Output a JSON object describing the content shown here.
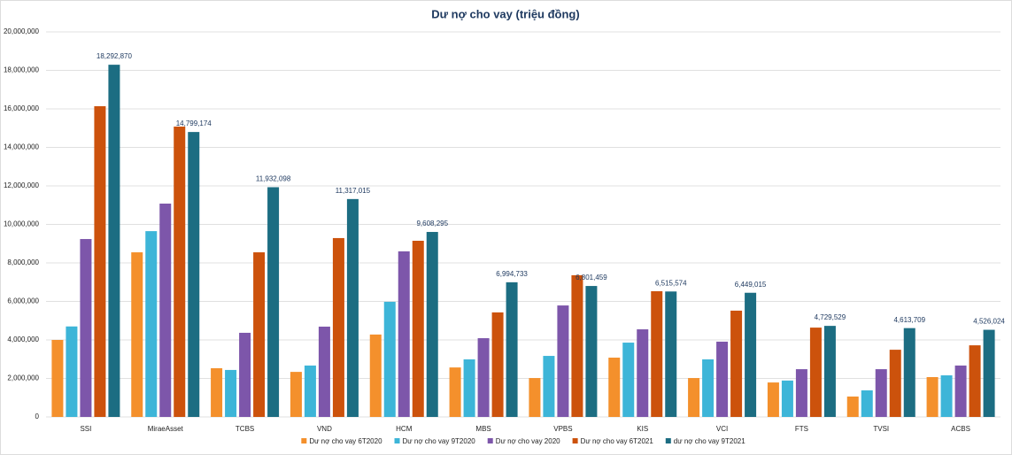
{
  "chart_data": {
    "type": "bar",
    "title": "Dư nợ cho vay (triệu đồng)",
    "categories": [
      "SSI",
      "MiraeAsset",
      "TCBS",
      "VND",
      "HCM",
      "MBS",
      "VPBS",
      "KIS",
      "VCI",
      "FTS",
      "TVSI",
      "ACBS"
    ],
    "series": [
      {
        "name": "Dư nợ cho vay 6T2020",
        "color": "#f4902c",
        "values": [
          4000000,
          8550000,
          2530000,
          2340000,
          4280000,
          2570000,
          2020000,
          3080000,
          2020000,
          1790000,
          1060000,
          2070000
        ]
      },
      {
        "name": "Dư nợ cho vay 9T2020",
        "color": "#3db5d8",
        "values": [
          4700000,
          9650000,
          2440000,
          2670000,
          5980000,
          2990000,
          3170000,
          3860000,
          2990000,
          1890000,
          1380000,
          2160000
        ]
      },
      {
        "name": "Dư nợ cho vay 2020",
        "color": "#7d56aa",
        "values": [
          9240000,
          11080000,
          4370000,
          4690000,
          8600000,
          4090000,
          5790000,
          4550000,
          3910000,
          2480000,
          2480000,
          2670000
        ]
      },
      {
        "name": "Dư nợ cho vay 6T2021",
        "color": "#cc520c",
        "values": [
          16140000,
          15080000,
          8550000,
          9290000,
          9150000,
          5430000,
          7360000,
          6530000,
          5520000,
          4640000,
          3490000,
          3720000
        ]
      },
      {
        "name": "dư nợ cho vay 9T2021",
        "color": "#1c6d82",
        "values": [
          18292870,
          14799174,
          11932098,
          11317015,
          9608295,
          6994733,
          6801459,
          6515574,
          6449015,
          4729529,
          4613709,
          4526024
        ],
        "value_labels": [
          "18,292,870",
          "14,799,174",
          "11,932,098",
          "11,317,015",
          "9,608,295",
          "6,994,733",
          "6,801,459",
          "6,515,574",
          "6,449,015",
          "4,729,529",
          "4,613,709",
          "4,526,024"
        ]
      }
    ],
    "ylim": [
      0,
      20000000
    ],
    "yticks": [
      0,
      {
        "value": 2000000,
        "label": "2,000,000"
      },
      {
        "value": 4000000,
        "label": "4,000,000"
      },
      {
        "value": 6000000,
        "label": "6,000,000"
      },
      {
        "value": 8000000,
        "label": "8,000,000"
      },
      {
        "value": 10000000,
        "label": "10,000,000"
      },
      {
        "value": 12000000,
        "label": "12,000,000"
      },
      {
        "value": 14000000,
        "label": "14,000,000"
      },
      {
        "value": 16000000,
        "label": "16,000,000"
      },
      {
        "value": 18000000,
        "label": "18,000,000"
      },
      {
        "value": 20000000,
        "label": "20,000,000"
      }
    ],
    "grid": true,
    "legend": "bottom"
  }
}
